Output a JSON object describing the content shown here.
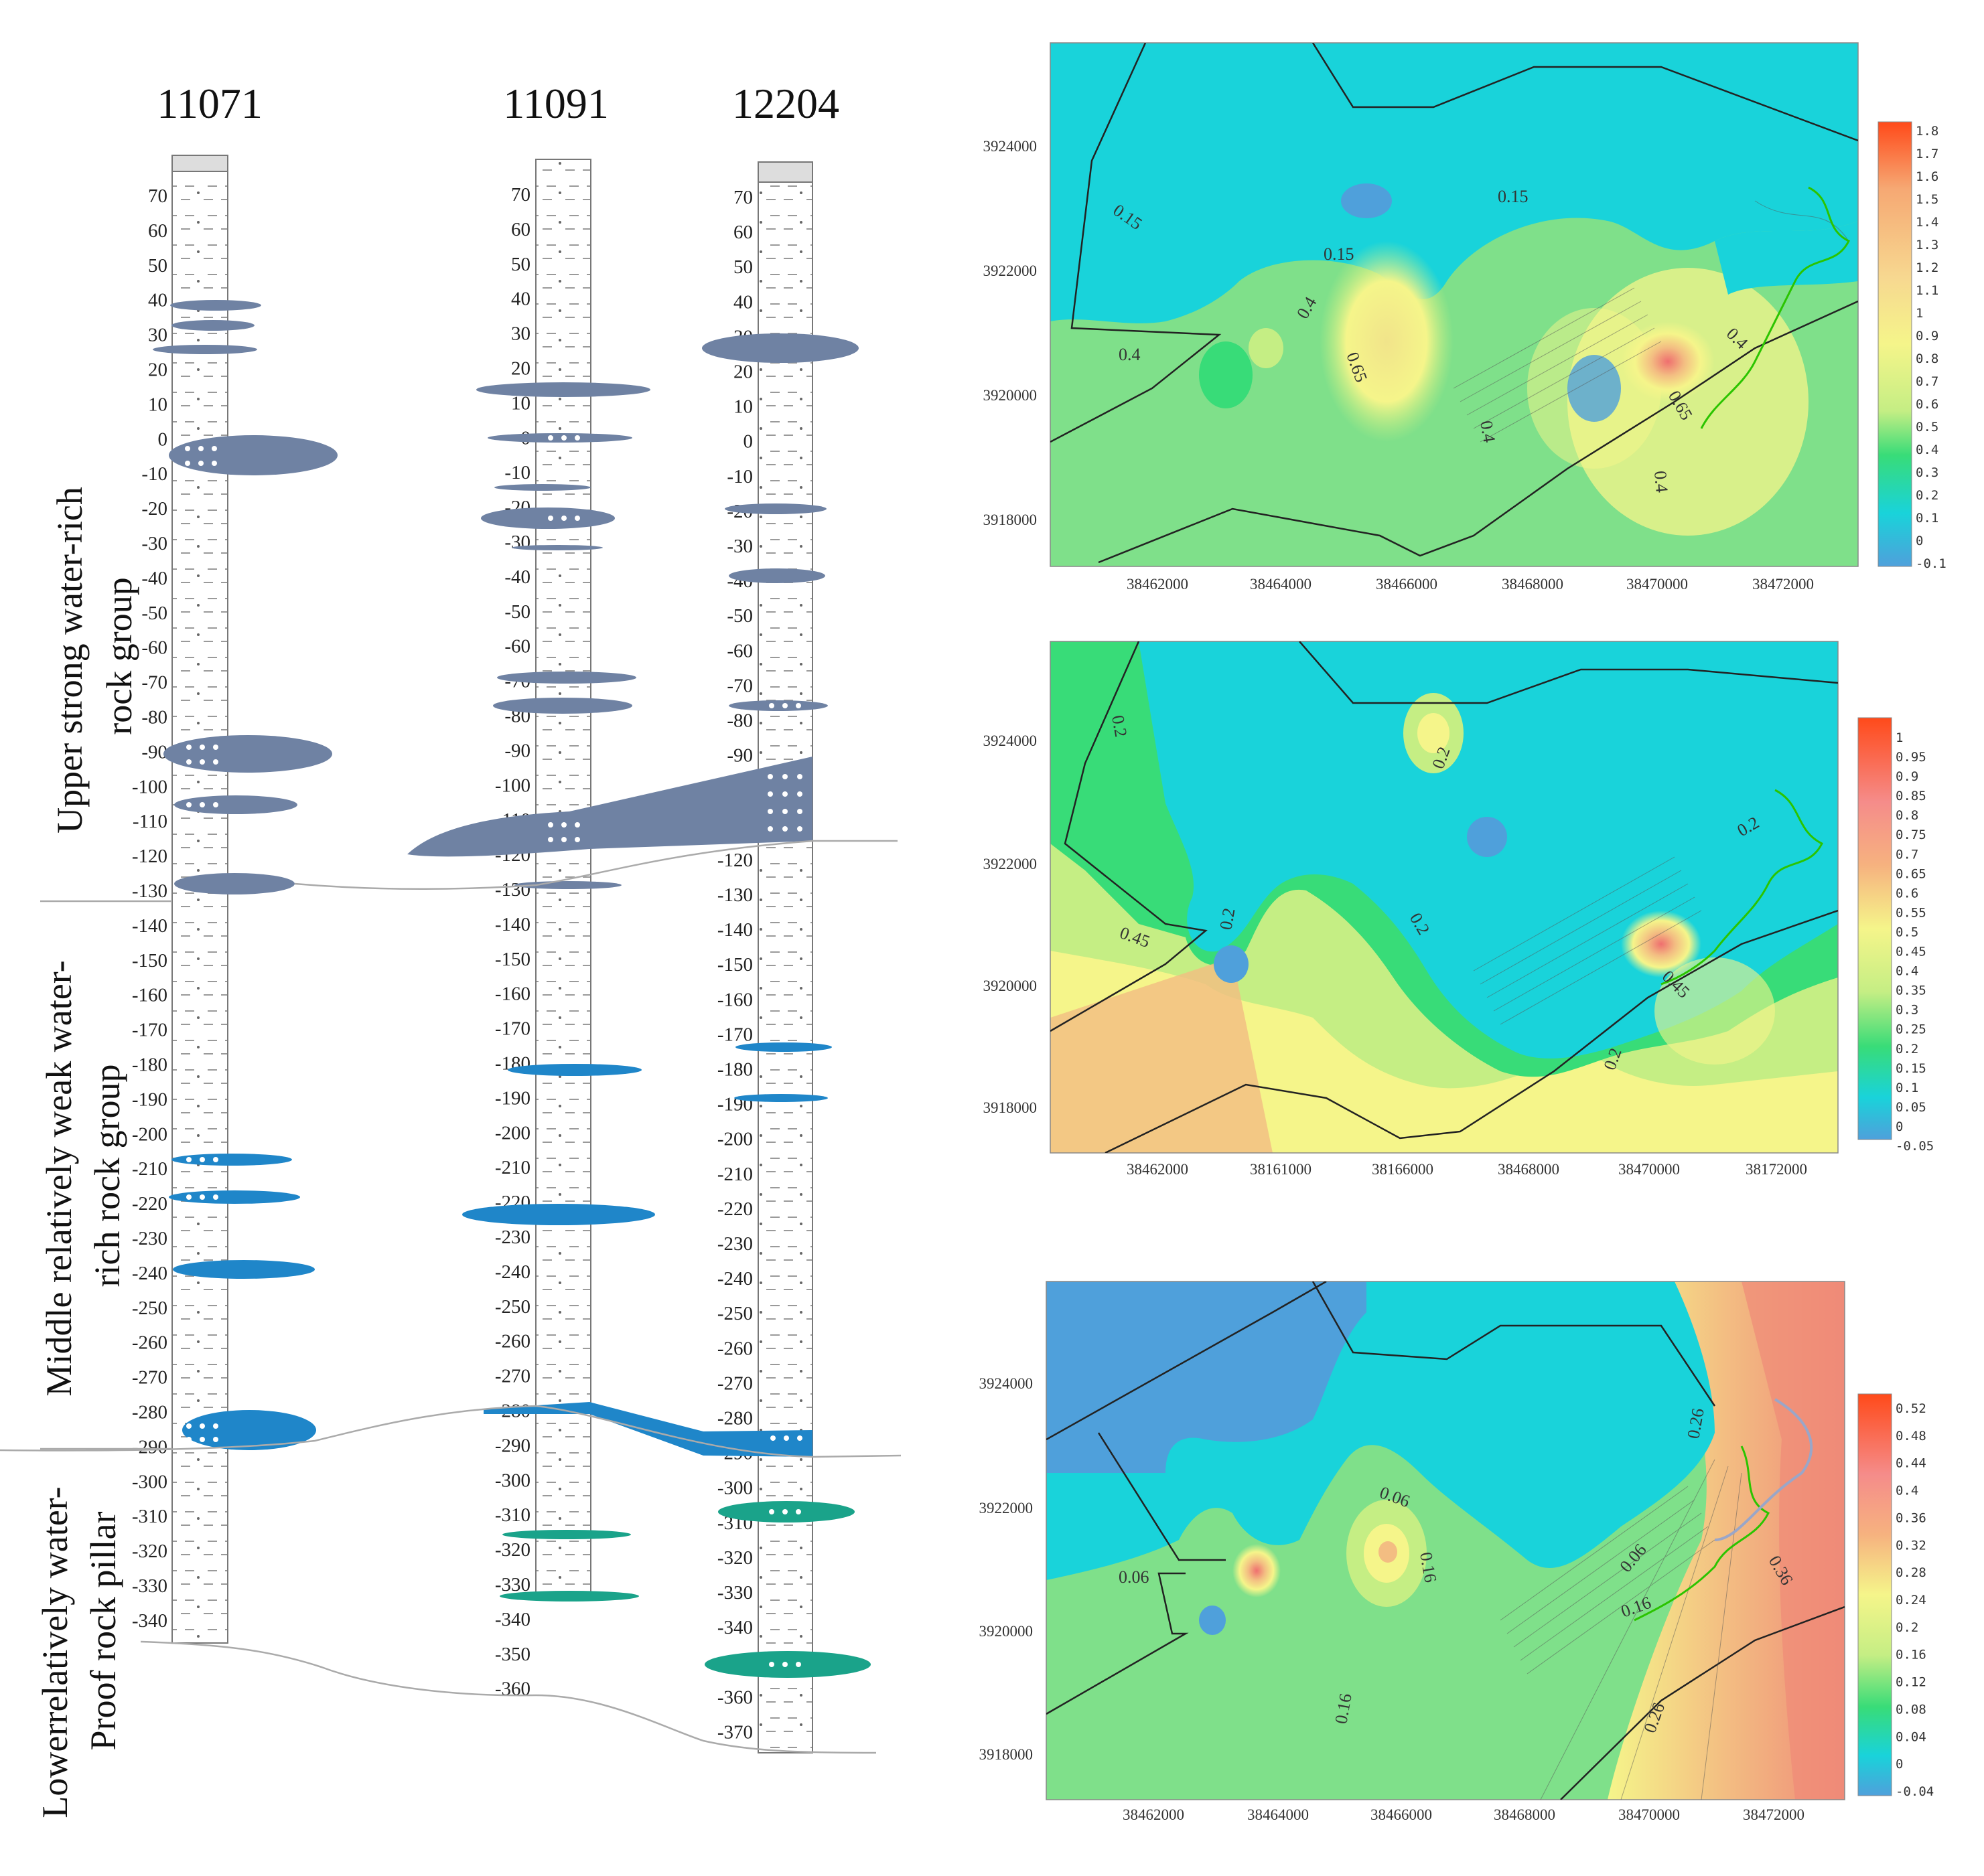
{
  "columns": {
    "titles": [
      "11071",
      "11091",
      "12204"
    ],
    "ticks": {
      "c1": [
        "70",
        "60",
        "50",
        "40",
        "30",
        "20",
        "10",
        "0",
        "-10",
        "-20",
        "-30",
        "-40",
        "-50",
        "-60",
        "-70",
        "-80",
        "-90",
        "-100",
        "-110",
        "-120",
        "-130",
        "-140",
        "-150",
        "-160",
        "-170",
        "-180",
        "-190",
        "-200",
        "-210",
        "-220",
        "-230",
        "-240",
        "-250",
        "-260",
        "-270",
        "-280",
        "-290",
        "-300",
        "-310",
        "-320",
        "-330",
        "-340"
      ],
      "c2": [
        "70",
        "60",
        "50",
        "40",
        "30",
        "20",
        "10",
        "0",
        "-10",
        "-20",
        "-30",
        "-40",
        "-50",
        "-60",
        "-70",
        "-80",
        "-90",
        "-100",
        "-110",
        "-120",
        "-130",
        "-140",
        "-150",
        "-160",
        "-170",
        "-180",
        "-190",
        "-200",
        "-210",
        "-220",
        "-230",
        "-240",
        "-250",
        "-260",
        "-270",
        "-280",
        "-290",
        "-300",
        "-310",
        "-320",
        "-330",
        "-340",
        "-350",
        "-360"
      ],
      "c3": [
        "70",
        "60",
        "50",
        "40",
        "30",
        "20",
        "10",
        "0",
        "-10",
        "-20",
        "-30",
        "-40",
        "-50",
        "-60",
        "-70",
        "-80",
        "-90",
        "-100",
        "-110",
        "-120",
        "-130",
        "-140",
        "-150",
        "-160",
        "-170",
        "-180",
        "-190",
        "-200",
        "-210",
        "-220",
        "-230",
        "-240",
        "-250",
        "-260",
        "-270",
        "-280",
        "-290",
        "-300",
        "-310",
        "-320",
        "-330",
        "-340",
        "-350",
        "-360",
        "-370"
      ]
    },
    "groups": {
      "upper": [
        "Upper strong water-rich",
        "rock group"
      ],
      "middle": [
        "Middle  relatively weak water-",
        "rich rock group"
      ],
      "lower": [
        "Lowerrelatively water-",
        "Proof rock pillar"
      ]
    }
  },
  "maps": [
    {
      "name": "map-top",
      "y_ticks": [
        "3924000",
        "3922000",
        "3920000",
        "3918000"
      ],
      "x_ticks": [
        "38462000",
        "38464000",
        "38466000",
        "38468000",
        "38470000",
        "38472000"
      ],
      "scale": [
        "1.8",
        "1.7",
        "1.6",
        "1.5",
        "1.4",
        "1.3",
        "1.2",
        "1.1",
        "1",
        "0.9",
        "0.8",
        "0.7",
        "0.6",
        "0.5",
        "0.4",
        "0.3",
        "0.2",
        "0.1",
        "0",
        "-0.1"
      ],
      "contour_labels": [
        "0.15",
        "0.15",
        "0.15",
        "0.4",
        "0.4",
        "0.65",
        "0.4",
        "0.4",
        "0.65",
        "0.4"
      ]
    },
    {
      "name": "map-middle",
      "y_ticks": [
        "3924000",
        "3922000",
        "3920000",
        "3918000"
      ],
      "x_ticks": [
        "38462000",
        "38161000",
        "38166000",
        "38468000",
        "38470000",
        "38172000"
      ],
      "scale": [
        "1",
        "0.95",
        "0.9",
        "0.85",
        "0.8",
        "0.75",
        "0.7",
        "0.65",
        "0.6",
        "0.55",
        "0.5",
        "0.45",
        "0.4",
        "0.35",
        "0.3",
        "0.25",
        "0.2",
        "0.15",
        "0.1",
        "0.05",
        "0",
        "-0.05"
      ],
      "contour_labels": [
        "0.2",
        "0.2",
        "0.2",
        "0.45",
        "0.2",
        "0.2",
        "0.45",
        "0.2"
      ]
    },
    {
      "name": "map-bottom",
      "y_ticks": [
        "3924000",
        "3922000",
        "3920000",
        "3918000"
      ],
      "x_ticks": [
        "38462000",
        "38464000",
        "38466000",
        "38468000",
        "38470000",
        "38472000"
      ],
      "scale": [
        "0.52",
        "0.48",
        "0.44",
        "0.4",
        "0.36",
        "0.32",
        "0.28",
        "0.24",
        "0.2",
        "0.16",
        "0.12",
        "0.08",
        "0.04",
        "0",
        "-0.04"
      ],
      "contour_labels": [
        "0.06",
        "0.06",
        "0.26",
        "0.16",
        "0.06",
        "0.16",
        "0.16",
        "0.26",
        "0.36"
      ]
    }
  ],
  "colors": {
    "aquifer_upper": "#6f82a3",
    "aquifer_middle": "#1f86c9",
    "aquifer_lower": "#1aa38a",
    "map_cyan": "#19d3da",
    "map_green": "#7fe08a",
    "map_yellow": "#f5f58a",
    "map_orange": "#f3bd82",
    "map_red": "#ef6f6f",
    "map_blue": "#4fa0db"
  }
}
